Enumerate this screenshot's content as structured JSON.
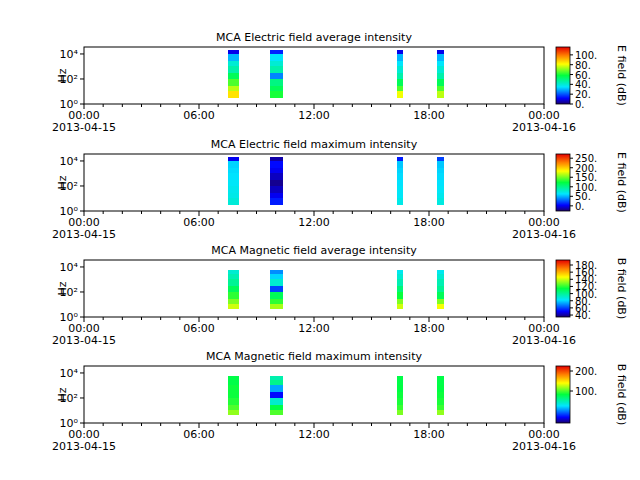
{
  "chart_data": [
    {
      "type": "heatmap",
      "title": "MCA  Electric field average intensity",
      "ylabel": "Hz",
      "log": "y",
      "xlim": [
        "2013-04-15 00:00",
        "2013-04-16 00:00"
      ],
      "xticks": [
        {
          "value": "2013-04-15 00:00",
          "label": "00:00\n2013-04-15"
        },
        {
          "value": "2013-04-15 06:00",
          "label": "06:00"
        },
        {
          "value": "2013-04-15 12:00",
          "label": "12:00"
        },
        {
          "value": "2013-04-15 18:00",
          "label": "18:00"
        },
        {
          "value": "2013-04-16 00:00",
          "label": "00:00\n2013-04-16"
        }
      ],
      "ylim": [
        1,
        36000
      ],
      "yticks": [
        {
          "value": 1,
          "label": "10⁰"
        },
        {
          "value": 100,
          "label": "10²"
        },
        {
          "value": 10000,
          "label": "10⁴"
        }
      ],
      "frequency_bins": [
        3,
        10,
        30,
        100,
        300,
        1000,
        3000,
        10000,
        20000
      ],
      "segments": [
        {
          "start": "2013-04-15 07:30",
          "end": "2013-04-15 08:05",
          "values": [
            85,
            75,
            65,
            55,
            45,
            40,
            30,
            10
          ]
        },
        {
          "start": "2013-04-15 09:42",
          "end": "2013-04-15 10:23",
          "values": [
            60,
            55,
            50,
            25,
            45,
            40,
            35,
            15
          ]
        },
        {
          "start": "2013-04-15 16:20",
          "end": "2013-04-15 16:38",
          "values": [
            80,
            65,
            55,
            45,
            40,
            35,
            30,
            10
          ]
        },
        {
          "start": "2013-04-15 18:25",
          "end": "2013-04-15 18:47",
          "values": [
            75,
            65,
            55,
            45,
            40,
            35,
            30,
            10
          ]
        }
      ],
      "colorbar": {
        "label": "E field (dB)",
        "range": [
          0,
          116
        ],
        "ticks": [
          {
            "value": 0,
            "label": "0."
          },
          {
            "value": 20,
            "label": "20."
          },
          {
            "value": 40,
            "label": "40."
          },
          {
            "value": 60,
            "label": "60."
          },
          {
            "value": 80,
            "label": "80."
          },
          {
            "value": 100,
            "label": "100."
          }
        ]
      }
    },
    {
      "type": "heatmap",
      "title": "MCA  Electric field maximum intensity",
      "ylabel": "Hz",
      "log": "y",
      "xlim": [
        "2013-04-15 00:00",
        "2013-04-16 00:00"
      ],
      "xticks": [
        {
          "value": "2013-04-15 00:00",
          "label": "00:00\n2013-04-15"
        },
        {
          "value": "2013-04-15 06:00",
          "label": "06:00"
        },
        {
          "value": "2013-04-15 12:00",
          "label": "12:00"
        },
        {
          "value": "2013-04-15 18:00",
          "label": "18:00"
        },
        {
          "value": "2013-04-16 00:00",
          "label": "00:00\n2013-04-16"
        }
      ],
      "ylim": [
        1,
        36000
      ],
      "yticks": [
        {
          "value": 1,
          "label": "10⁰"
        },
        {
          "value": 100,
          "label": "10²"
        },
        {
          "value": 10000,
          "label": "10⁴"
        }
      ],
      "frequency_bins": [
        3,
        10,
        30,
        100,
        300,
        1000,
        3000,
        10000,
        20000
      ],
      "segments": [
        {
          "start": "2013-04-15 07:30",
          "end": "2013-04-15 08:05",
          "values": [
            75,
            70,
            68,
            65,
            62,
            60,
            58,
            0
          ]
        },
        {
          "start": "2013-04-15 09:42",
          "end": "2013-04-15 10:23",
          "values": [
            10,
            0,
            -10,
            -20,
            -10,
            0,
            5,
            -15
          ]
        },
        {
          "start": "2013-04-15 16:20",
          "end": "2013-04-15 16:38",
          "values": [
            70,
            65,
            65,
            62,
            60,
            58,
            55,
            10
          ]
        },
        {
          "start": "2013-04-15 18:25",
          "end": "2013-04-15 18:47",
          "values": [
            72,
            68,
            65,
            62,
            60,
            58,
            55,
            20
          ]
        }
      ],
      "colorbar": {
        "label": "E field (dB)",
        "range": [
          -27,
          272
        ],
        "ticks": [
          {
            "value": 0,
            "label": "0."
          },
          {
            "value": 50,
            "label": "50."
          },
          {
            "value": 100,
            "label": "100."
          },
          {
            "value": 150,
            "label": "150."
          },
          {
            "value": 200,
            "label": "200."
          },
          {
            "value": 250,
            "label": "250."
          }
        ]
      }
    },
    {
      "type": "heatmap",
      "title": "MCA  Magnetic field average intensity",
      "ylabel": "Hz",
      "log": "y",
      "xlim": [
        "2013-04-15 00:00",
        "2013-04-16 00:00"
      ],
      "xticks": [
        {
          "value": "2013-04-15 00:00",
          "label": "00:00\n2013-04-15"
        },
        {
          "value": "2013-04-15 06:00",
          "label": "06:00"
        },
        {
          "value": "2013-04-15 12:00",
          "label": "12:00"
        },
        {
          "value": "2013-04-15 18:00",
          "label": "18:00"
        },
        {
          "value": "2013-04-16 00:00",
          "label": "00:00\n2013-04-16"
        }
      ],
      "ylim": [
        1,
        36000
      ],
      "yticks": [
        {
          "value": 1,
          "label": "10⁰"
        },
        {
          "value": 100,
          "label": "10²"
        },
        {
          "value": 10000,
          "label": "10⁴"
        }
      ],
      "frequency_bins": [
        4,
        10,
        30,
        100,
        300,
        1000,
        3000,
        6000
      ],
      "segments": [
        {
          "start": "2013-04-15 07:30",
          "end": "2013-04-15 08:05",
          "values": [
            140,
            130,
            120,
            110,
            100,
            95,
            90
          ]
        },
        {
          "start": "2013-04-15 09:42",
          "end": "2013-04-15 10:23",
          "values": [
            135,
            120,
            110,
            60,
            90,
            80,
            70
          ]
        },
        {
          "start": "2013-04-15 16:20",
          "end": "2013-04-15 16:38",
          "values": [
            140,
            130,
            115,
            105,
            95,
            90,
            85
          ]
        },
        {
          "start": "2013-04-15 18:25",
          "end": "2013-04-15 18:47",
          "values": [
            145,
            130,
            110,
            100,
            95,
            90,
            85
          ]
        }
      ],
      "colorbar": {
        "label": "B field (dB)",
        "range": [
          34.5,
          194
        ],
        "ticks": [
          {
            "value": 40,
            "label": "40."
          },
          {
            "value": 60,
            "label": "60."
          },
          {
            "value": 80,
            "label": "80."
          },
          {
            "value": 100,
            "label": "100."
          },
          {
            "value": 120,
            "label": "120."
          },
          {
            "value": 140,
            "label": "140."
          },
          {
            "value": 160,
            "label": "160."
          },
          {
            "value": 180,
            "label": "180."
          }
        ]
      }
    },
    {
      "type": "heatmap",
      "title": "MCA  Magnetic field maximum intensity",
      "ylabel": "Hz",
      "log": "y",
      "xlim": [
        "2013-04-15 00:00",
        "2013-04-16 00:00"
      ],
      "xticks": [
        {
          "value": "2013-04-15 00:00",
          "label": "00:00\n2013-04-15"
        },
        {
          "value": "2013-04-15 06:00",
          "label": "06:00"
        },
        {
          "value": "2013-04-15 12:00",
          "label": "12:00"
        },
        {
          "value": "2013-04-15 18:00",
          "label": "18:00"
        },
        {
          "value": "2013-04-16 00:00",
          "label": "00:00\n2013-04-16"
        }
      ],
      "ylim": [
        1,
        36000
      ],
      "yticks": [
        {
          "value": 1,
          "label": "10⁰"
        },
        {
          "value": 100,
          "label": "10²"
        },
        {
          "value": 10000,
          "label": "10⁴"
        }
      ],
      "frequency_bins": [
        4,
        10,
        30,
        100,
        300,
        1000,
        3000,
        6000
      ],
      "segments": [
        {
          "start": "2013-04-15 07:30",
          "end": "2013-04-15 08:05",
          "values": [
            115,
            100,
            90,
            85,
            85,
            80,
            80
          ]
        },
        {
          "start": "2013-04-15 09:42",
          "end": "2013-04-15 10:23",
          "values": [
            100,
            80,
            40,
            -30,
            10,
            60,
            50
          ]
        },
        {
          "start": "2013-04-15 16:20",
          "end": "2013-04-15 16:38",
          "values": [
            110,
            95,
            88,
            85,
            82,
            80,
            80
          ]
        },
        {
          "start": "2013-04-15 18:25",
          "end": "2013-04-15 18:47",
          "values": [
            115,
            95,
            88,
            85,
            82,
            80,
            80
          ]
        }
      ],
      "colorbar": {
        "label": "B field (dB)",
        "range": [
          -60,
          225
        ],
        "ticks": [
          {
            "value": 100,
            "label": "100."
          },
          {
            "value": 200,
            "label": "200."
          }
        ]
      }
    }
  ]
}
